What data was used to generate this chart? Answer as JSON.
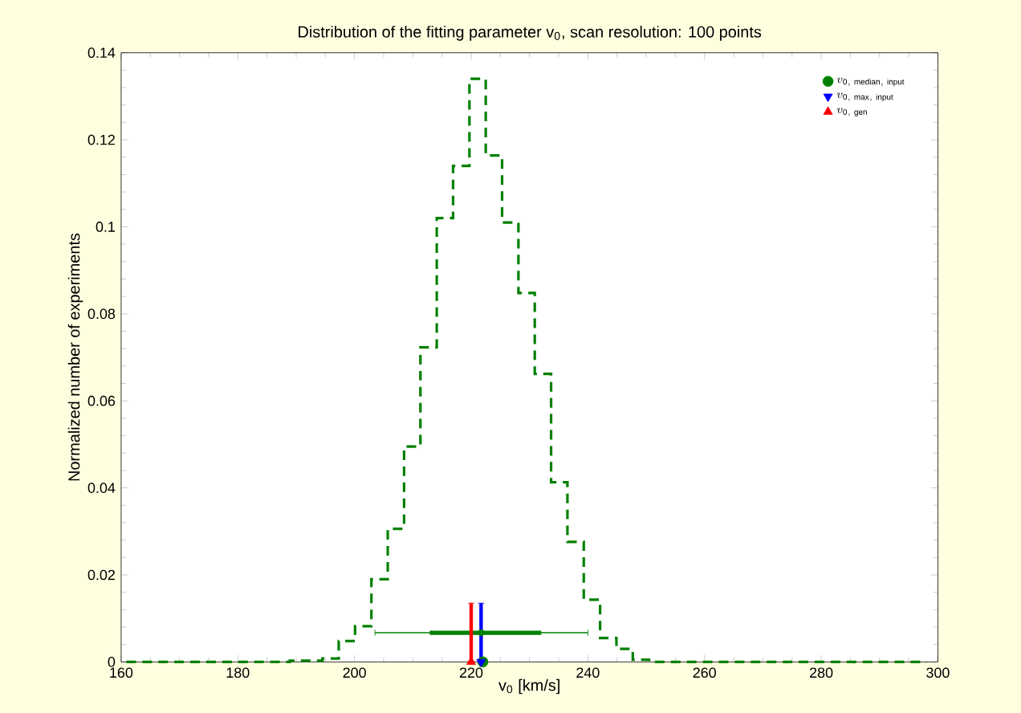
{
  "chart_data": {
    "type": "histogram",
    "title": "Distribution of the fitting parameter v$_{0}$, scan resolution: 100 points",
    "xlabel": "v$_{0}$ [km/s]",
    "ylabel": "Normalized number of experiments",
    "xlim": [
      160,
      300
    ],
    "ylim": [
      0,
      0.14
    ],
    "xticks": [
      160,
      180,
      200,
      220,
      240,
      260,
      280,
      300
    ],
    "yticks": [
      0,
      0.02,
      0.04,
      0.06,
      0.08,
      0.1,
      0.12,
      0.14
    ],
    "grid": false,
    "legend": "top right",
    "series": [
      {
        "color": "#008000",
        "line_style": "dashed",
        "bins": [
          160.9,
          163.7,
          166.5,
          169.3,
          172.1,
          174.9,
          177.7,
          180.5,
          183.3,
          186.1,
          188.9,
          191.7,
          194.5,
          197.3,
          200.1,
          202.9,
          205.7,
          208.5,
          211.3,
          214.1,
          216.9,
          219.7,
          222.5,
          225.3,
          228.1,
          230.9,
          233.7,
          236.5,
          239.3,
          242.1,
          244.9,
          247.7,
          250.5,
          253.3,
          256.1,
          258.9,
          261.7,
          264.5,
          267.3,
          270.1,
          272.9,
          275.7,
          278.5,
          281.3,
          284.1,
          286.9,
          289.7,
          292.5,
          295.3,
          298.1
        ],
        "values": [
          0,
          0,
          0,
          0,
          0,
          0,
          0,
          0,
          0,
          0,
          0.0003,
          0.0003,
          0.0008,
          0.0048,
          0.0082,
          0.019,
          0.0306,
          0.0495,
          0.0723,
          0.102,
          0.114,
          0.134,
          0.1164,
          0.101,
          0.0848,
          0.0662,
          0.0413,
          0.0276,
          0.0143,
          0.0055,
          0.003,
          0.0005,
          0,
          0,
          0,
          0,
          0,
          0,
          0,
          0,
          0,
          0,
          0,
          0,
          0,
          0,
          0,
          0,
          0
        ]
      },
      {
        "type": "scatter",
        "color": "#008000",
        "x": [
          221.7
        ],
        "values": [
          0.0067
        ],
        "xerrors": [
          [
            203.5,
            240
          ]
        ]
      },
      {
        "type": "line",
        "color": "#008000",
        "marker": "none",
        "x": [
          212.9,
          232
        ],
        "values": [
          0.0067,
          0.0067
        ]
      },
      {
        "type": "scatter",
        "name": "v_{\\mathrm{0,\\ median,\\ input}}",
        "color": "#008000",
        "marker": "circle",
        "x": [
          222
        ],
        "values": [
          0
        ]
      },
      {
        "type": "scatter",
        "name": "v_{\\mathrm{0,\\ max,\\ input}}",
        "color": "#0000ff",
        "marker": "triangle down",
        "x": [
          221.7
        ],
        "values": [
          0
        ],
        "errors": [
          [
            0,
            0.0135
          ]
        ]
      },
      {
        "type": "scatter",
        "name": "v_{\\mathrm{0,\\ gen}}",
        "color": "#ff0000",
        "marker": "triangle",
        "x": [
          220
        ],
        "values": [
          0
        ],
        "errors": [
          [
            0,
            0.0135
          ]
        ]
      }
    ]
  }
}
